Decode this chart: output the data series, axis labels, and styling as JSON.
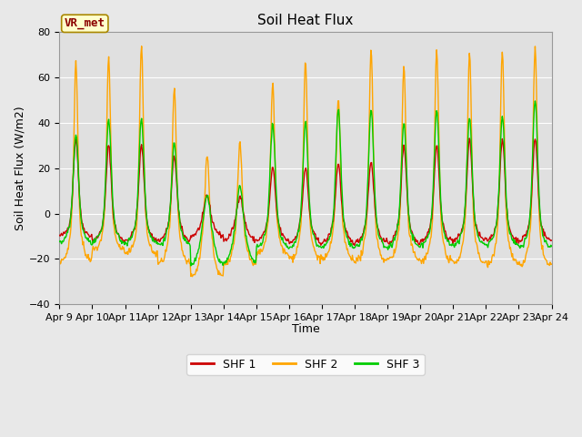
{
  "title": "Soil Heat Flux",
  "xlabel": "Time",
  "ylabel": "Soil Heat Flux (W/m2)",
  "ylim": [
    -40,
    80
  ],
  "yticks": [
    -40,
    -20,
    0,
    20,
    40,
    60,
    80
  ],
  "xtick_labels": [
    "Apr 9",
    "Apr 10",
    "Apr 11",
    "Apr 12",
    "Apr 13",
    "Apr 14",
    "Apr 15",
    "Apr 16",
    "Apr 17",
    "Apr 18",
    "Apr 19",
    "Apr 20",
    "Apr 21",
    "Apr 22",
    "Apr 23",
    "Apr 24"
  ],
  "colors": {
    "SHF1": "#cc0000",
    "SHF2": "#ffa500",
    "SHF3": "#00cc00"
  },
  "legend_labels": [
    "SHF 1",
    "SHF 2",
    "SHF 3"
  ],
  "annotation_text": "VR_met",
  "annotation_box_facecolor": "#ffffcc",
  "annotation_box_edgecolor": "#aa8800",
  "fig_facecolor": "#e8e8e8",
  "plot_facecolor": "#e0e0e0",
  "grid_color": "#ffffff",
  "n_days": 15,
  "pts_per_day": 48,
  "title_fontsize": 11,
  "tick_fontsize": 8,
  "label_fontsize": 9
}
